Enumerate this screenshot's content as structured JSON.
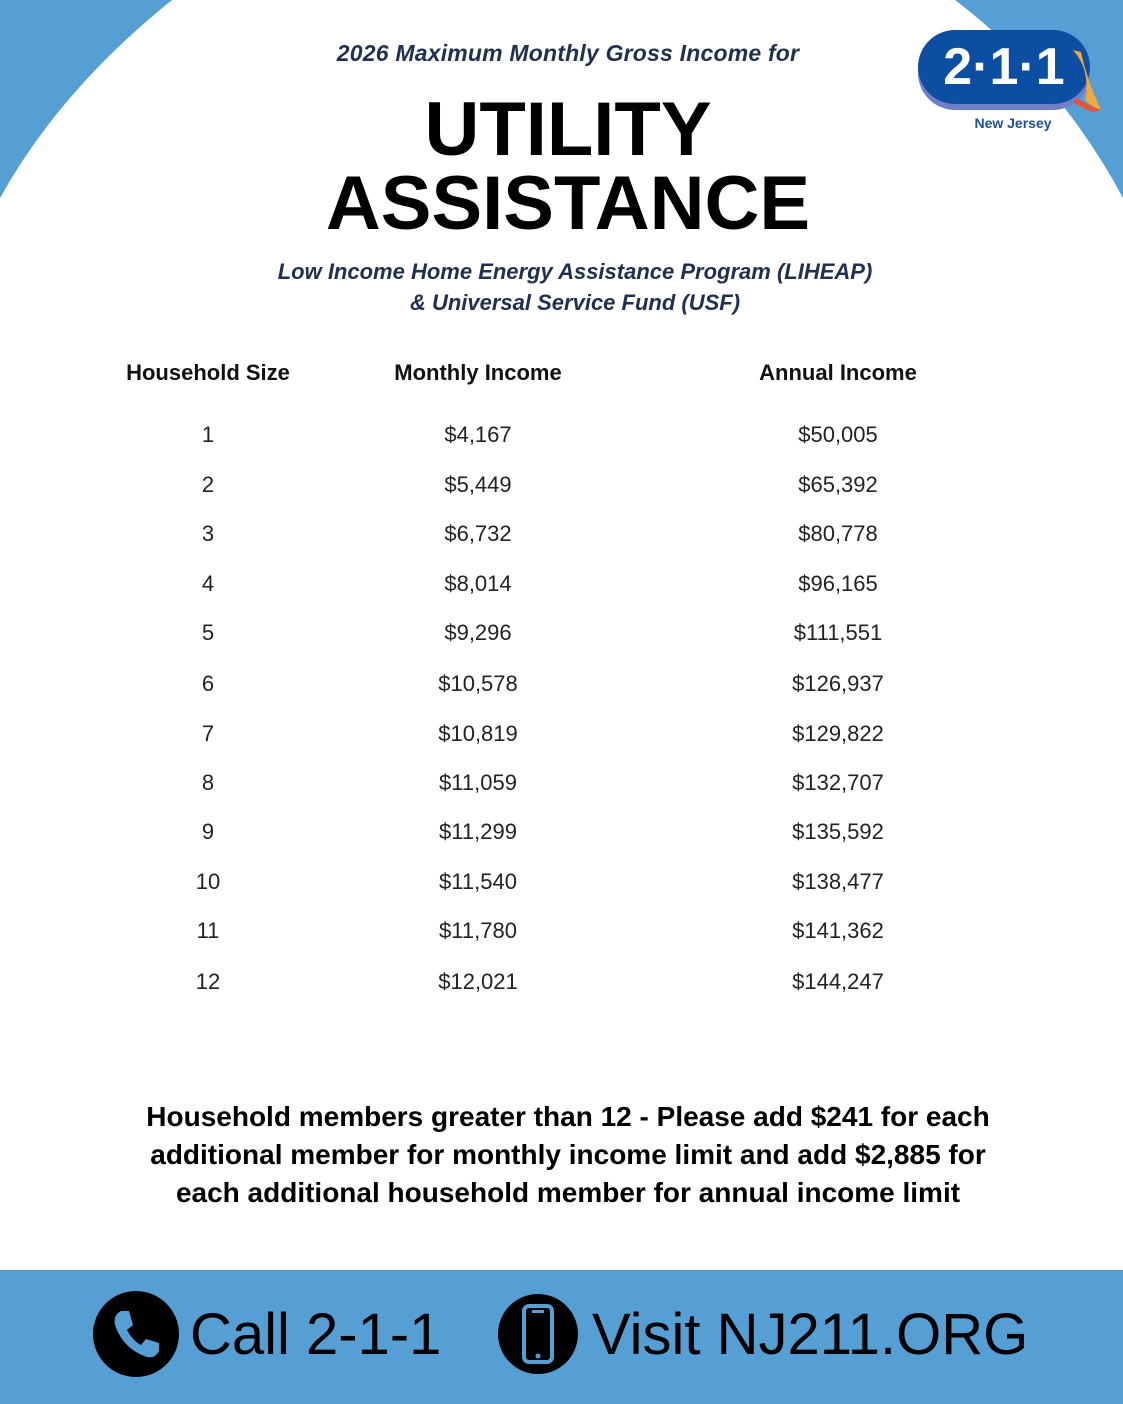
{
  "header": {
    "pretitle": "2026 Maximum Monthly Gross Income for",
    "title_line1": "UTILITY",
    "title_line2": "ASSISTANCE",
    "subtitle_line1": "Low Income Home Energy Assistance Program (LIHEAP)",
    "subtitle_line2": "& Universal Service Fund (USF)"
  },
  "logo": {
    "text": "2·1·1",
    "region": "New Jersey"
  },
  "colors": {
    "accent_blue": "#569fd4",
    "logo_blue": "#0c4ea2"
  },
  "table": {
    "headers": [
      "Household Size",
      "Monthly Income",
      "Annual Income"
    ],
    "rows": [
      [
        "1",
        "$4,167",
        "$50,005"
      ],
      [
        "2",
        "$5,449",
        "$65,392"
      ],
      [
        "3",
        "$6,732",
        "$80,778"
      ],
      [
        "4",
        "$8,014",
        "$96,165"
      ],
      [
        "5",
        "$9,296",
        "$111,551"
      ],
      [
        "6",
        "$10,578",
        "$126,937"
      ],
      [
        "7",
        "$10,819",
        "$129,822"
      ],
      [
        "8",
        "$11,059",
        "$132,707"
      ],
      [
        "9",
        "$11,299",
        "$135,592"
      ],
      [
        "10",
        "$11,540",
        "$138,477"
      ],
      [
        "11",
        "$11,780",
        "$141,362"
      ],
      [
        "12",
        "$12,021",
        "$144,247"
      ]
    ]
  },
  "note": {
    "line1": "Household members greater than 12 - Please add $241 for each",
    "line2": "additional member for monthly income limit and add $2,885 for",
    "line3": "each additional household member for annual income limit"
  },
  "footer": {
    "call_label": "Call 2-1-1",
    "call_icon": "phone-icon",
    "visit_label": "Visit NJ211.ORG",
    "visit_icon": "smartphone-icon"
  }
}
